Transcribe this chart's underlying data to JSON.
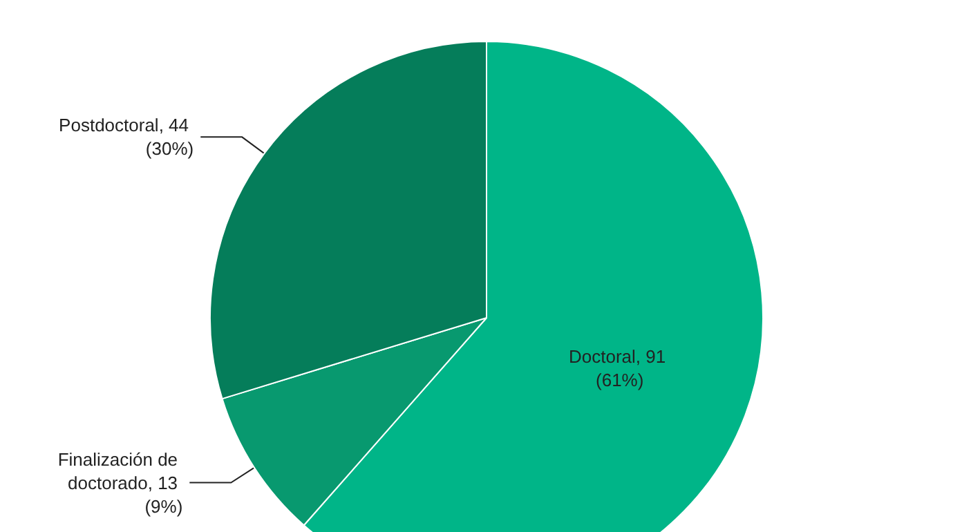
{
  "chart_data": {
    "type": "pie",
    "categories": [
      "Doctoral",
      "Finalización de doctorado",
      "Postdoctoral"
    ],
    "values": [
      91,
      13,
      44
    ],
    "colors": [
      "#00b588",
      "#08996f",
      "#057d5a"
    ],
    "value_labels": [
      "91 (61%)",
      "13 (9%)",
      "44 (30%)"
    ],
    "legend": false
  }
}
